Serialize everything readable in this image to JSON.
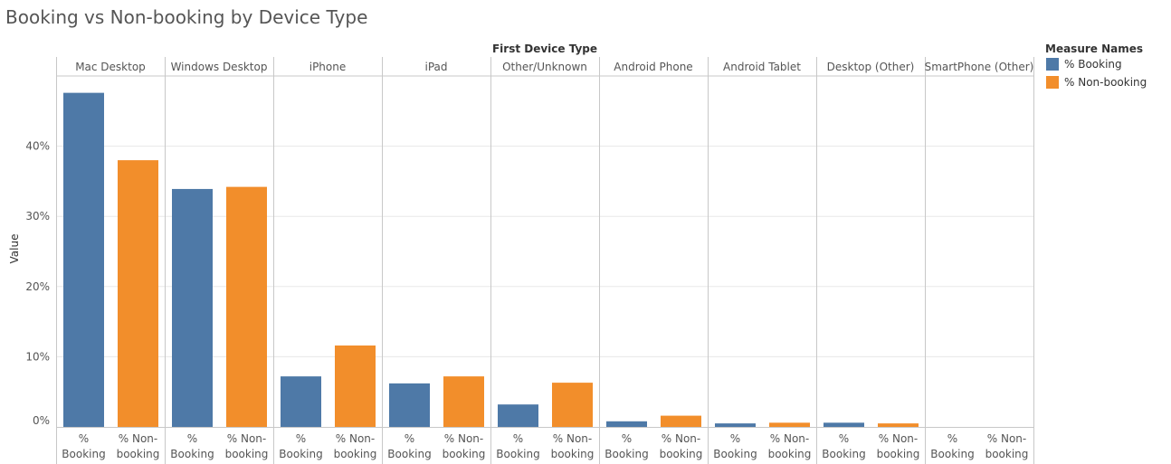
{
  "colors": {
    "booking": "#4e79a7",
    "non_booking": "#f28e2b",
    "grid": "#e8e8e8",
    "divider": "#c8c8c8",
    "text": "#555555",
    "bg": "#ffffff"
  },
  "chart_data": {
    "type": "bar",
    "title": "Booking vs Non-booking by Device Type",
    "column_header": "First Device Type",
    "ylabel": "Value",
    "ylim": [
      0,
      50
    ],
    "yticks": [
      0,
      10,
      20,
      30,
      40
    ],
    "ytick_labels": [
      "0%",
      "10%",
      "20%",
      "30%",
      "40%"
    ],
    "grid": true,
    "legend": {
      "title": "Measure Names",
      "position": "right"
    },
    "categories": [
      "Mac Desktop",
      "Windows Desktop",
      "iPhone",
      "iPad",
      "Other/Unknown",
      "Android Phone",
      "Android Tablet",
      "Desktop (Other)",
      "SmartPhone (Other)"
    ],
    "measure_labels": [
      [
        "%",
        "Booking"
      ],
      [
        "% Non-",
        "booking"
      ]
    ],
    "series": [
      {
        "name": "% Booking",
        "color": "#4e79a7",
        "values": [
          47.6,
          33.9,
          7.2,
          6.2,
          3.2,
          0.8,
          0.5,
          0.6,
          0.0
        ]
      },
      {
        "name": "% Non-booking",
        "color": "#f28e2b",
        "values": [
          38.0,
          34.2,
          11.6,
          7.2,
          6.3,
          1.6,
          0.6,
          0.5,
          0.0
        ]
      }
    ]
  }
}
